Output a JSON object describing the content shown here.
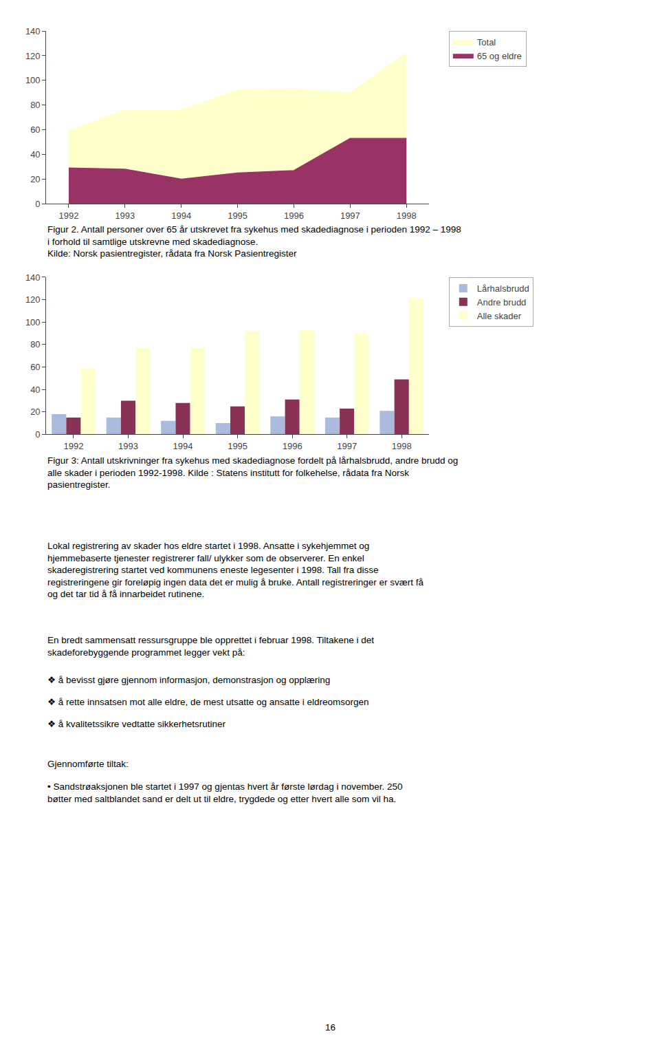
{
  "chart_data": [
    {
      "type": "area",
      "x": [
        1992,
        1993,
        1994,
        1995,
        1996,
        1997,
        1998
      ],
      "series": [
        {
          "name": "Total",
          "color": "#ffffcc",
          "values": [
            59,
            76,
            76,
            92,
            93,
            90,
            122
          ]
        },
        {
          "name": "65 og eldre",
          "color": "#993366",
          "values": [
            29,
            28,
            20,
            25,
            27,
            53,
            53
          ]
        }
      ],
      "xlim": [
        1991.6,
        1998.4
      ],
      "xticks": [
        1992,
        1993,
        1994,
        1995,
        1996,
        1997,
        1998
      ],
      "ylim": [
        0,
        140
      ],
      "yticks": [
        0,
        20,
        40,
        60,
        80,
        100,
        120,
        140
      ],
      "grid": false,
      "legend": "right",
      "annotations": [
        "Figur 2. Antall personer over 65 år utskrevet fra sykehus med skadediagnose i perioden 1992 – 1998\ni forhold til samtlige utskrevne med skadediagnose.\nKilde: Norsk pasientregister, rådata fra Norsk Pasientregister"
      ]
    },
    {
      "type": "bar",
      "categories": [
        "1992",
        "1993",
        "1994",
        "1995",
        "1996",
        "1997",
        "1998"
      ],
      "series": [
        {
          "name": "Lårhalsbrudd",
          "color": "#aabbdd",
          "values": [
            18,
            15,
            12,
            10,
            16,
            15,
            21
          ]
        },
        {
          "name": "Andre brudd",
          "color": "#883355",
          "values": [
            15,
            30,
            28,
            25,
            31,
            23,
            49
          ]
        },
        {
          "name": "Alle skader",
          "color": "#ffffcc",
          "values": [
            59,
            77,
            77,
            92,
            93,
            90,
            121
          ]
        }
      ],
      "ylim": [
        0,
        140
      ],
      "yticks": [
        0,
        20,
        40,
        60,
        80,
        100,
        120,
        140
      ],
      "grid": false,
      "legend": "right",
      "annotations": [
        "Figur 3: Antall utskrivninger fra sykehus med skadediagnose fordelt på lårhalsbrudd, andre brudd og\nalle skader i perioden 1992-1998. Kilde : Statens institutt for folkehelse, rådata fra Norsk\npasientregister.",
        "Lokal registrering av skader hos eldre startet i 1998. Ansatte i sykehjemmet og\nhjemmebaserte tjenester registrerer fall/ ulykker som de observerer. En enkel\nskaderegistrering startet ved kommunens eneste legesenter i 1998. Tall fra disse\nregistreringene gir foreløpig ingen data det er mulig å bruke. Antall registreringer er svært få\nog det tar tid å få innarbeidet rutinene.",
        "En bredt sammensatt ressursgruppe ble opprettet i februar 1998. Tiltakene i det\nskadeforebyggende programmet legger vekt på:",
        "❖ å bevisst gjøre gjennom informasjon, demonstrasjon og opplæring",
        "❖ å rette innsatsen mot alle eldre, de mest utsatte og ansatte i eldreomsorgen",
        "❖ å kvalitetssikre vedtatte sikkerhetsrutiner",
        "Gjennomførte tiltak:",
        "• Sandstrøaksjonen ble startet i 1997 og gjentas hvert år første lørdag i november. 250\nbøtter med saltblandet sand er delt ut til eldre, trygdede og etter hvert alle som vil ha.",
        "16"
      ]
    }
  ]
}
